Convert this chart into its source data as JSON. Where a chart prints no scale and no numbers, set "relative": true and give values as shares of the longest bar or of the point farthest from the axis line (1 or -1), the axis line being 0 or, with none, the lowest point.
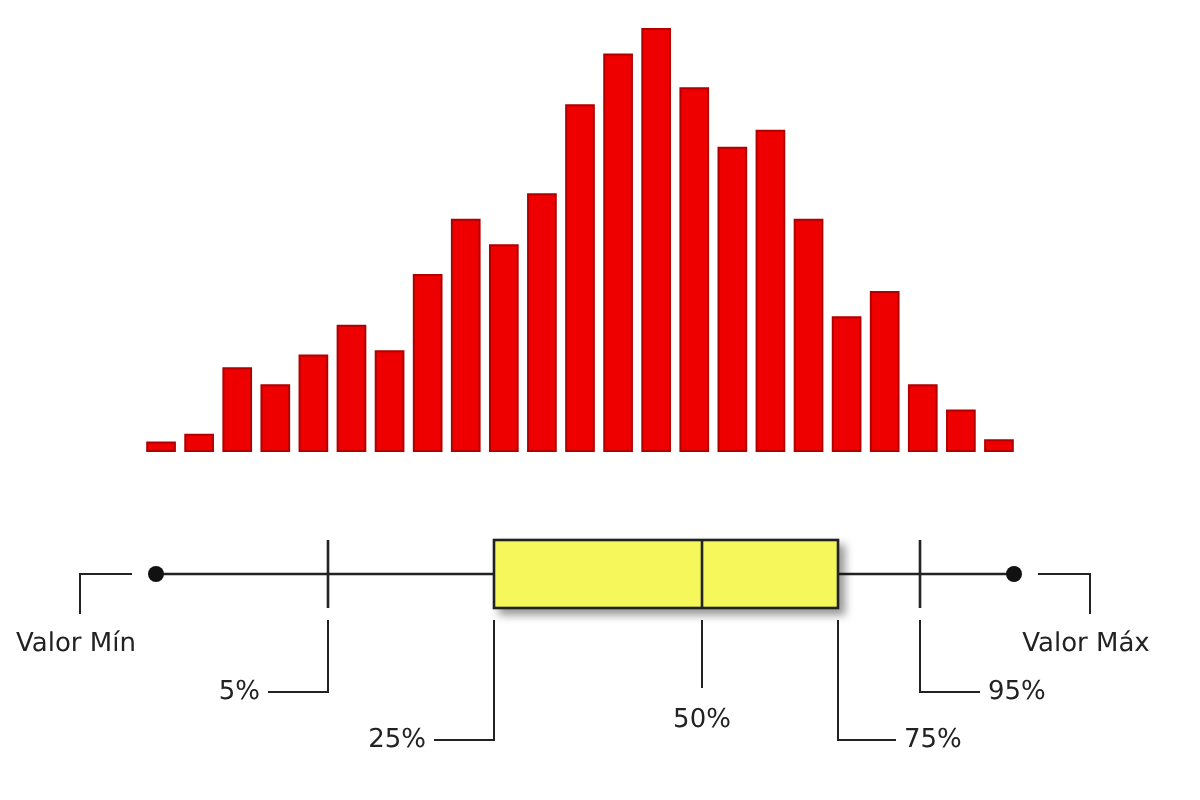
{
  "chart_data": [
    {
      "type": "bar",
      "relative": true,
      "color": "#ee0000",
      "categories": [
        null,
        null,
        null,
        null,
        null,
        null,
        null,
        null,
        null,
        null,
        null,
        null,
        null,
        null,
        null,
        null,
        null,
        null,
        null,
        null,
        null,
        null,
        null
      ],
      "values": [
        0.025,
        0.043,
        0.2,
        0.16,
        0.23,
        0.3,
        0.24,
        0.42,
        0.55,
        0.49,
        0.61,
        0.82,
        0.94,
        1,
        0.86,
        0.72,
        0.76,
        0.55,
        0.32,
        0.38,
        0.16,
        0.1,
        0.03
      ]
    },
    {
      "type": "other",
      "annotations": [
        "Valor Mín",
        "5%",
        "25%",
        "50%",
        "75%",
        "95%",
        "Valor Máx"
      ]
    }
  ]
}
